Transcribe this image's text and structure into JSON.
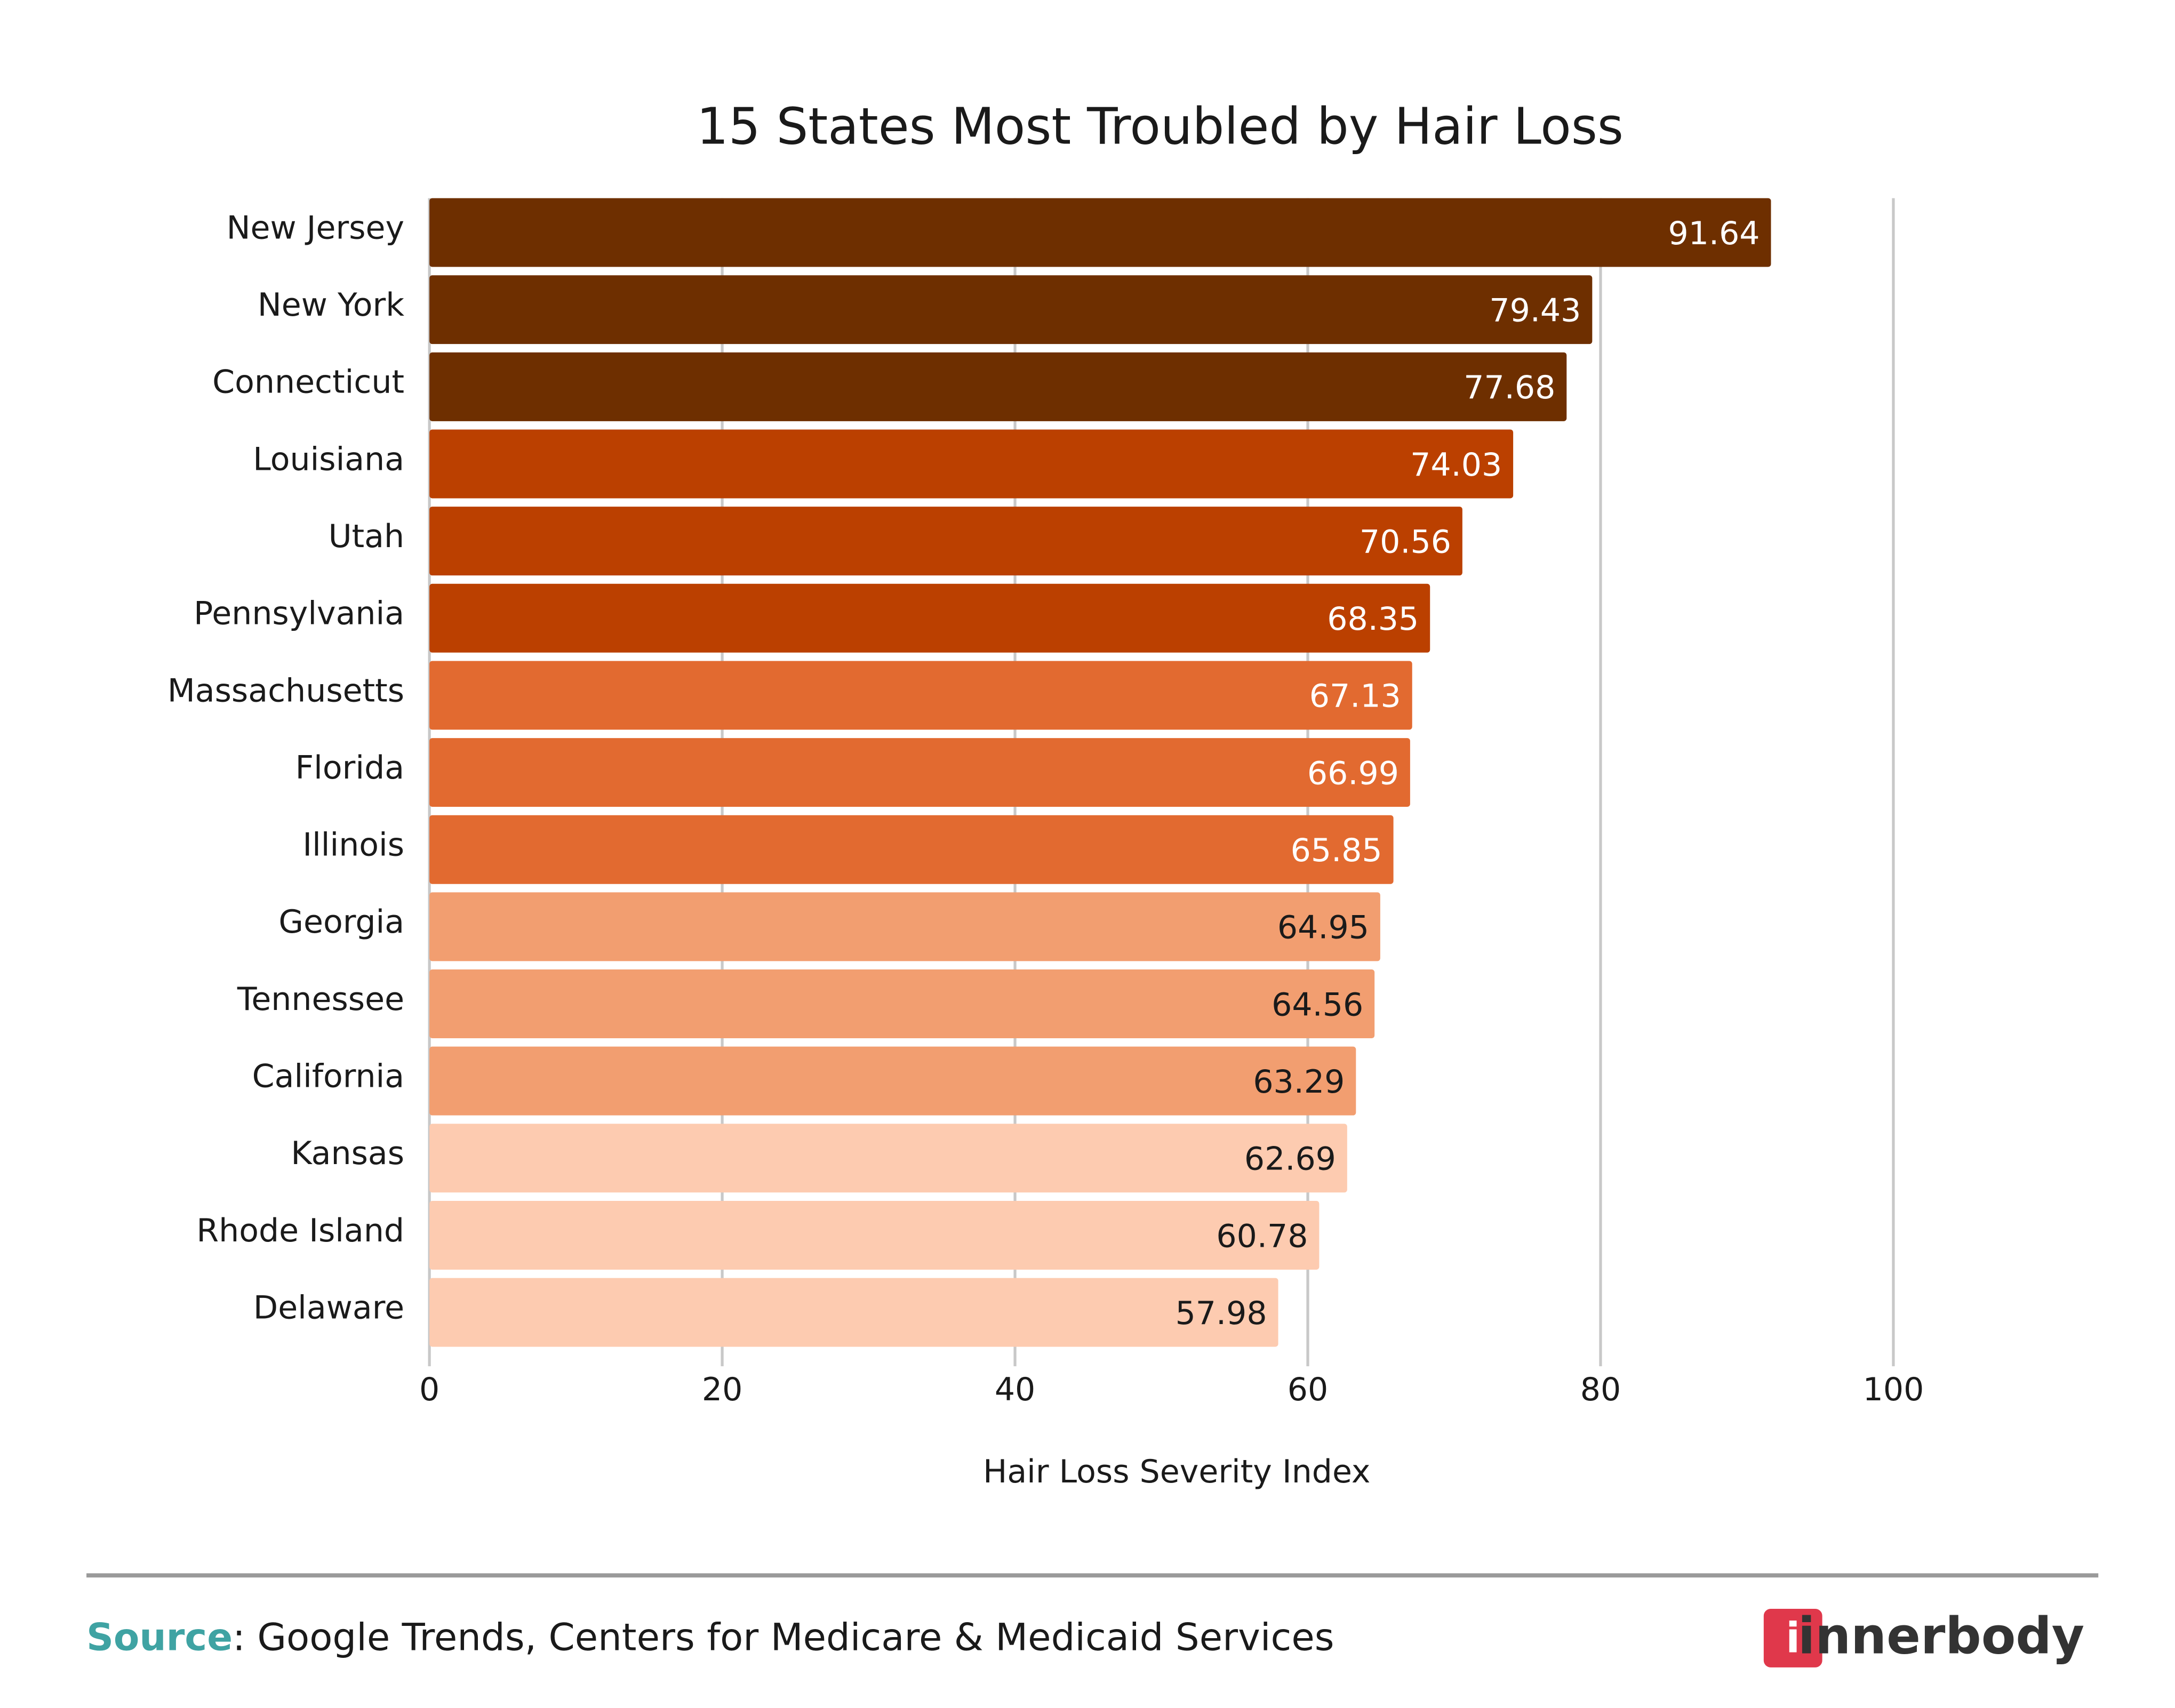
{
  "chart_data": {
    "type": "bar",
    "orientation": "horizontal",
    "title": "15 States Most Troubled by Hair Loss",
    "x_axis_label": "Hair Loss Severity Index",
    "categories": [
      "New Jersey",
      "New York",
      "Connecticut",
      "Louisiana",
      "Utah",
      "Pennsylvania",
      "Massachusetts",
      "Florida",
      "Illinois",
      "Georgia",
      "Tennessee",
      "California",
      "Kansas",
      "Rhode Island",
      "Delaware"
    ],
    "values": [
      91.64,
      79.43,
      77.68,
      74.03,
      70.56,
      68.35,
      67.13,
      66.99,
      65.85,
      64.95,
      64.56,
      63.29,
      62.69,
      60.78,
      57.98
    ],
    "colors": [
      "#6e2f00",
      "#6e2f00",
      "#6e2f00",
      "#bb4000",
      "#bb4000",
      "#bb4000",
      "#e26a30",
      "#e26a30",
      "#e26a30",
      "#f29e70",
      "#f29e70",
      "#f29e70",
      "#fdcbb0",
      "#fdcbb0",
      "#fdcbb0"
    ],
    "xlim": [
      0,
      100
    ],
    "xticks": [
      0,
      20,
      40,
      60,
      80,
      100
    ],
    "grid": true
  },
  "footer": {
    "source_label": "Source",
    "source_text": ": Google Trends, Centers for Medicare & Medicaid Services",
    "logo_icon": "i",
    "logo_text": "innerbody"
  }
}
